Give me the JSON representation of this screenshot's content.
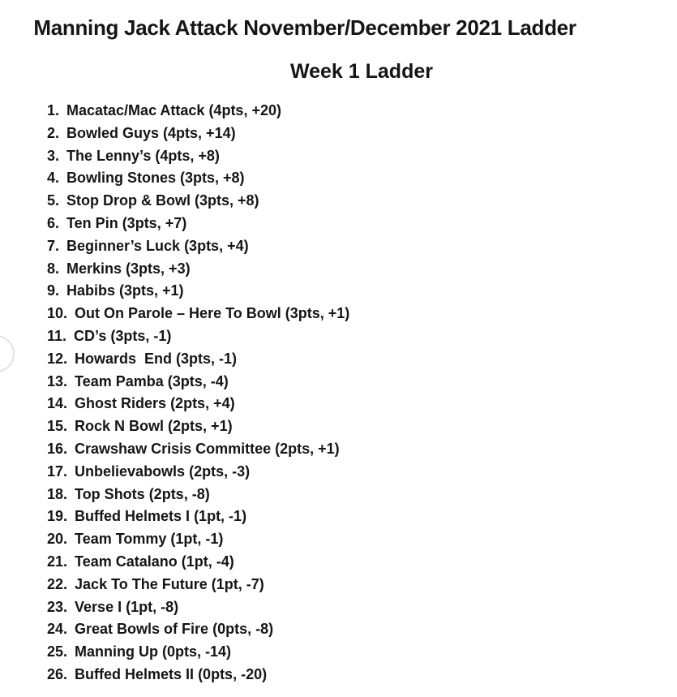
{
  "header": {
    "title": "Manning Jack Attack November/December 2021 Ladder",
    "subtitle": "Week 1 Ladder"
  },
  "ladder": {
    "entries": [
      {
        "rank": "1.",
        "team": "Macatac/Mac Attack",
        "stats": "(4pts, +20)"
      },
      {
        "rank": "2.",
        "team": "Bowled Guys",
        "stats": "(4pts, +14)"
      },
      {
        "rank": "3.",
        "team": "The Lenny’s",
        "stats": "(4pts, +8)"
      },
      {
        "rank": "4.",
        "team": "Bowling Stones",
        "stats": "(3pts, +8)"
      },
      {
        "rank": "5.",
        "team": "Stop Drop & Bowl",
        "stats": "(3pts, +8)"
      },
      {
        "rank": "6.",
        "team": "Ten Pin",
        "stats": "(3pts, +7)"
      },
      {
        "rank": "7.",
        "team": "Beginner’s Luck",
        "stats": "(3pts, +4)"
      },
      {
        "rank": "8.",
        "team": "Merkins",
        "stats": "(3pts, +3)"
      },
      {
        "rank": "9.",
        "team": "Habibs",
        "stats": "(3pts, +1)"
      },
      {
        "rank": "10.",
        "team": "Out On Parole – Here To Bowl",
        "stats": "(3pts, +1)"
      },
      {
        "rank": "11.",
        "team": "CD’s",
        "stats": "(3pts, -1)"
      },
      {
        "rank": "12.",
        "team": "Howards  End",
        "stats": "(3pts, -1)"
      },
      {
        "rank": "13.",
        "team": "Team Pamba",
        "stats": "(3pts, -4)"
      },
      {
        "rank": "14.",
        "team": "Ghost Riders",
        "stats": "(2pts, +4)"
      },
      {
        "rank": "15.",
        "team": "Rock N Bowl",
        "stats": "(2pts, +1)"
      },
      {
        "rank": "16.",
        "team": "Crawshaw Crisis Committee",
        "stats": "(2pts, +1)"
      },
      {
        "rank": "17.",
        "team": "Unbelievabowls",
        "stats": "(2pts, -3)"
      },
      {
        "rank": "18.",
        "team": "Top Shots",
        "stats": "(2pts, -8)"
      },
      {
        "rank": "19.",
        "team": "Buffed Helmets I",
        "stats": "(1pt, -1)"
      },
      {
        "rank": "20.",
        "team": "Team Tommy",
        "stats": "(1pt, -1)"
      },
      {
        "rank": "21.",
        "team": "Team Catalano",
        "stats": "(1pt, -4)"
      },
      {
        "rank": "22.",
        "team": "Jack To The Future",
        "stats": "(1pt, -7)"
      },
      {
        "rank": "23.",
        "team": "Verse I",
        "stats": "(1pt, -8)"
      },
      {
        "rank": "24.",
        "team": "Great Bowls of Fire",
        "stats": "(0pts, -8)"
      },
      {
        "rank": "25.",
        "team": "Manning Up",
        "stats": "(0pts, -14)"
      },
      {
        "rank": "26.",
        "team": "Buffed Helmets II",
        "stats": "(0pts, -20)"
      }
    ]
  }
}
